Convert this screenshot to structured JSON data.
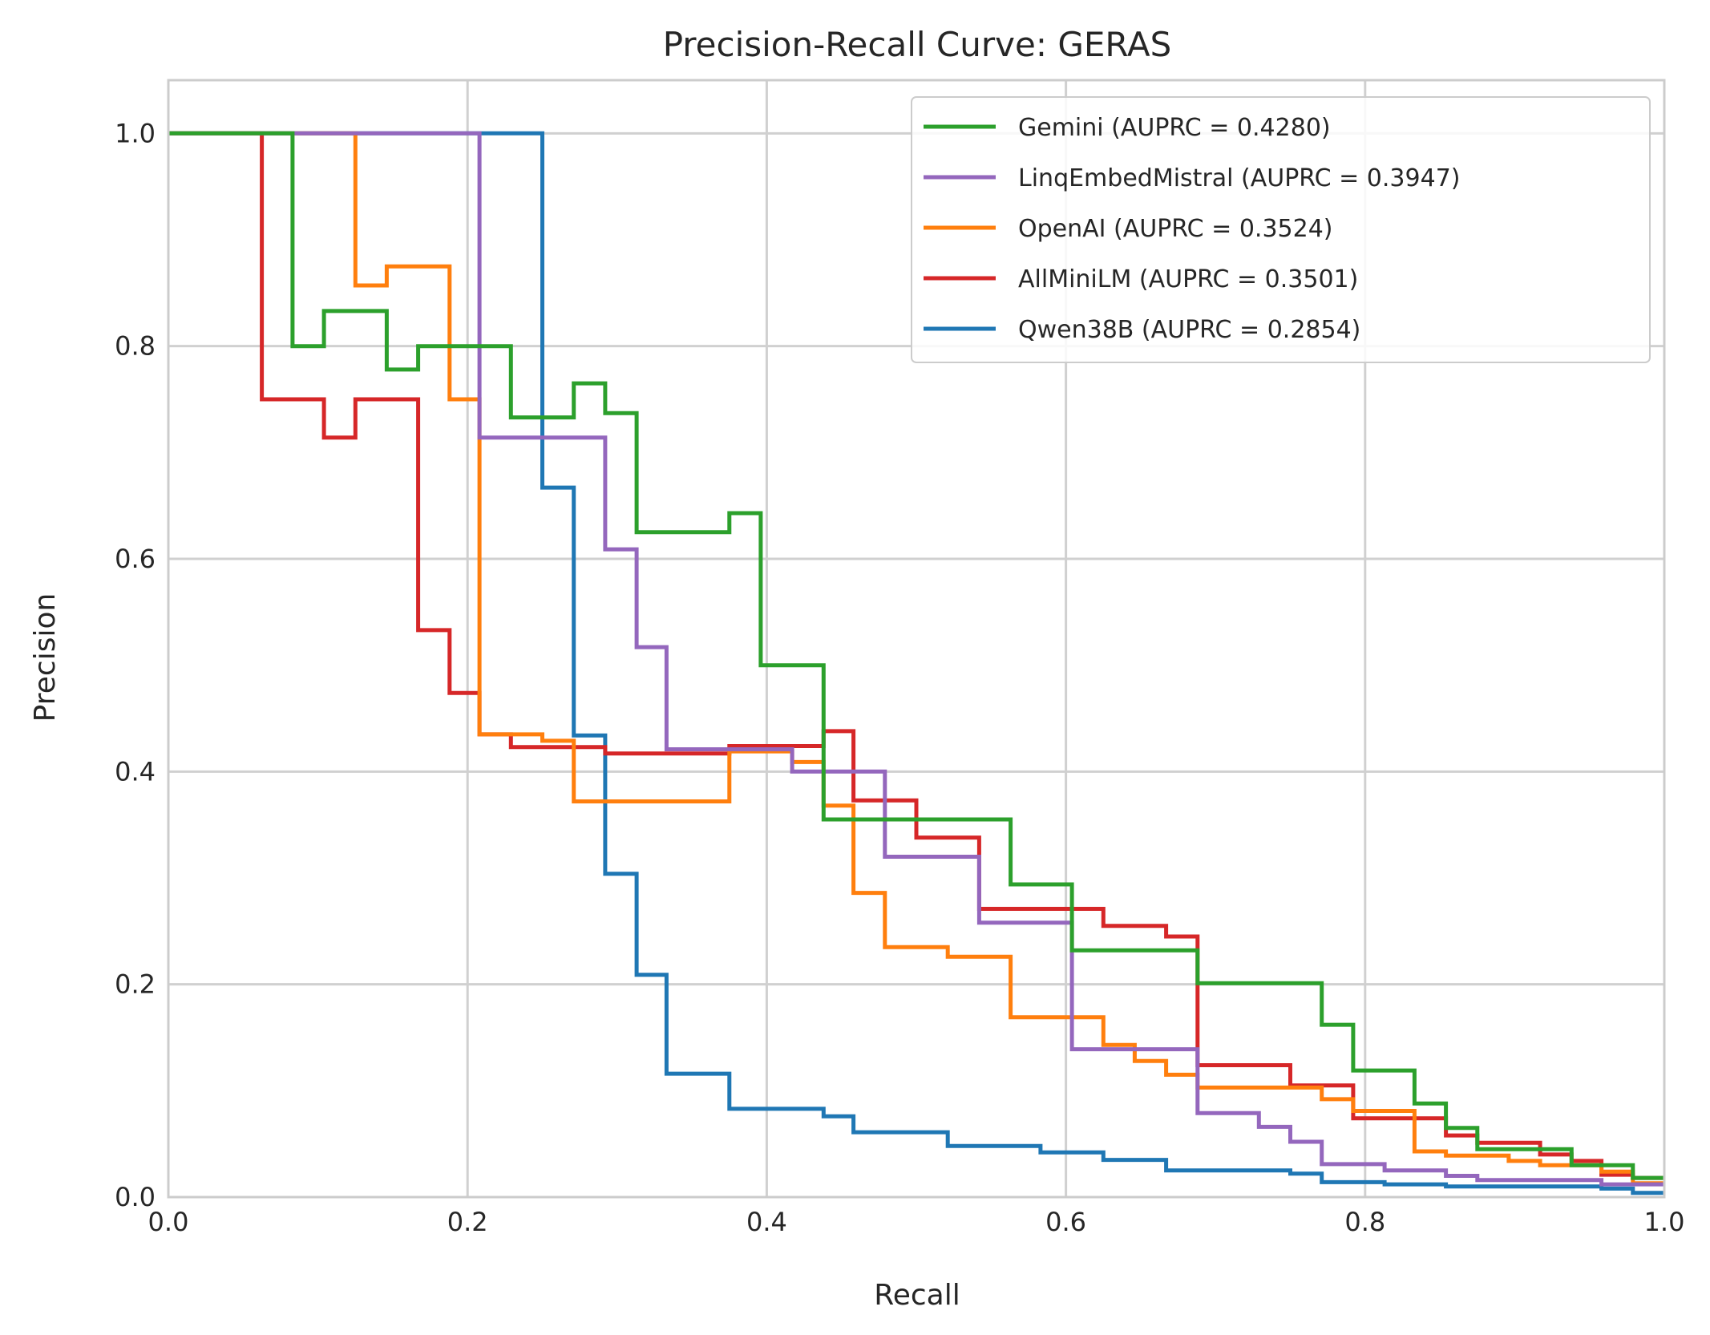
{
  "chart_data": {
    "type": "line",
    "step": "post",
    "title": "Precision-Recall Curve: GERAS",
    "xlabel": "Recall",
    "ylabel": "Precision",
    "xlim": [
      0.0,
      1.0
    ],
    "ylim": [
      0.0,
      1.05
    ],
    "xticks": [
      "0.0",
      "0.2",
      "0.4",
      "0.6",
      "0.8",
      "1.0"
    ],
    "yticks": [
      "0.0",
      "0.2",
      "0.4",
      "0.6",
      "0.8",
      "1.0"
    ],
    "grid": true,
    "legend_position": "top-right",
    "series": [
      {
        "name": "Gemini (AUPRC = 0.4280)",
        "color": "#2ca02c",
        "points": [
          [
            0,
            1.0
          ],
          [
            0.083,
            1.0
          ],
          [
            0.083,
            0.8
          ],
          [
            0.104,
            0.8
          ],
          [
            0.104,
            0.833
          ],
          [
            0.146,
            0.833
          ],
          [
            0.146,
            0.778
          ],
          [
            0.167,
            0.778
          ],
          [
            0.167,
            0.8
          ],
          [
            0.229,
            0.8
          ],
          [
            0.229,
            0.733
          ],
          [
            0.271,
            0.733
          ],
          [
            0.271,
            0.765
          ],
          [
            0.292,
            0.765
          ],
          [
            0.292,
            0.737
          ],
          [
            0.313,
            0.737
          ],
          [
            0.313,
            0.625
          ],
          [
            0.375,
            0.625
          ],
          [
            0.375,
            0.643
          ],
          [
            0.396,
            0.643
          ],
          [
            0.396,
            0.5
          ],
          [
            0.438,
            0.5
          ],
          [
            0.438,
            0.355
          ],
          [
            0.563,
            0.355
          ],
          [
            0.563,
            0.294
          ],
          [
            0.604,
            0.294
          ],
          [
            0.604,
            0.232
          ],
          [
            0.688,
            0.232
          ],
          [
            0.688,
            0.201
          ],
          [
            0.771,
            0.201
          ],
          [
            0.771,
            0.162
          ],
          [
            0.792,
            0.162
          ],
          [
            0.792,
            0.119
          ],
          [
            0.833,
            0.119
          ],
          [
            0.833,
            0.088
          ],
          [
            0.854,
            0.088
          ],
          [
            0.854,
            0.065
          ],
          [
            0.875,
            0.065
          ],
          [
            0.875,
            0.045
          ],
          [
            0.938,
            0.045
          ],
          [
            0.938,
            0.03
          ],
          [
            0.979,
            0.03
          ],
          [
            0.979,
            0.018
          ],
          [
            1.0,
            0.018
          ]
        ]
      },
      {
        "name": "LinqEmbedMistral (AUPRC = 0.3947)",
        "color": "#9467bd",
        "points": [
          [
            0,
            1.0
          ],
          [
            0.208,
            1.0
          ],
          [
            0.208,
            0.714
          ],
          [
            0.292,
            0.714
          ],
          [
            0.292,
            0.609
          ],
          [
            0.313,
            0.609
          ],
          [
            0.313,
            0.517
          ],
          [
            0.333,
            0.517
          ],
          [
            0.333,
            0.421
          ],
          [
            0.417,
            0.421
          ],
          [
            0.417,
            0.4
          ],
          [
            0.479,
            0.4
          ],
          [
            0.479,
            0.32
          ],
          [
            0.542,
            0.32
          ],
          [
            0.542,
            0.258
          ],
          [
            0.604,
            0.258
          ],
          [
            0.604,
            0.139
          ],
          [
            0.688,
            0.139
          ],
          [
            0.688,
            0.079
          ],
          [
            0.729,
            0.079
          ],
          [
            0.729,
            0.066
          ],
          [
            0.75,
            0.066
          ],
          [
            0.75,
            0.052
          ],
          [
            0.771,
            0.052
          ],
          [
            0.771,
            0.031
          ],
          [
            0.813,
            0.031
          ],
          [
            0.813,
            0.025
          ],
          [
            0.854,
            0.025
          ],
          [
            0.854,
            0.02
          ],
          [
            0.875,
            0.02
          ],
          [
            0.875,
            0.016
          ],
          [
            0.958,
            0.016
          ],
          [
            0.958,
            0.012
          ],
          [
            1.0,
            0.012
          ]
        ]
      },
      {
        "name": "OpenAI (AUPRC = 0.3524)",
        "color": "#ff7f0e",
        "points": [
          [
            0,
            1.0
          ],
          [
            0.125,
            1.0
          ],
          [
            0.125,
            0.857
          ],
          [
            0.146,
            0.857
          ],
          [
            0.146,
            0.875
          ],
          [
            0.188,
            0.875
          ],
          [
            0.188,
            0.75
          ],
          [
            0.208,
            0.75
          ],
          [
            0.208,
            0.435
          ],
          [
            0.25,
            0.435
          ],
          [
            0.25,
            0.429
          ],
          [
            0.271,
            0.429
          ],
          [
            0.271,
            0.372
          ],
          [
            0.375,
            0.372
          ],
          [
            0.375,
            0.419
          ],
          [
            0.417,
            0.419
          ],
          [
            0.417,
            0.409
          ],
          [
            0.438,
            0.409
          ],
          [
            0.438,
            0.368
          ],
          [
            0.458,
            0.368
          ],
          [
            0.458,
            0.286
          ],
          [
            0.479,
            0.286
          ],
          [
            0.479,
            0.235
          ],
          [
            0.521,
            0.235
          ],
          [
            0.521,
            0.226
          ],
          [
            0.563,
            0.226
          ],
          [
            0.563,
            0.169
          ],
          [
            0.625,
            0.169
          ],
          [
            0.625,
            0.143
          ],
          [
            0.646,
            0.143
          ],
          [
            0.646,
            0.128
          ],
          [
            0.667,
            0.128
          ],
          [
            0.667,
            0.115
          ],
          [
            0.688,
            0.115
          ],
          [
            0.688,
            0.103
          ],
          [
            0.771,
            0.103
          ],
          [
            0.771,
            0.092
          ],
          [
            0.792,
            0.092
          ],
          [
            0.792,
            0.081
          ],
          [
            0.833,
            0.081
          ],
          [
            0.833,
            0.043
          ],
          [
            0.854,
            0.043
          ],
          [
            0.854,
            0.039
          ],
          [
            0.896,
            0.039
          ],
          [
            0.896,
            0.034
          ],
          [
            0.917,
            0.034
          ],
          [
            0.917,
            0.03
          ],
          [
            0.958,
            0.03
          ],
          [
            0.958,
            0.024
          ],
          [
            0.979,
            0.024
          ],
          [
            0.979,
            0.013
          ],
          [
            1.0,
            0.013
          ]
        ]
      },
      {
        "name": "AllMiniLM (AUPRC = 0.3501)",
        "color": "#d62728",
        "points": [
          [
            0,
            1.0
          ],
          [
            0.0625,
            1.0
          ],
          [
            0.0625,
            0.75
          ],
          [
            0.104,
            0.75
          ],
          [
            0.104,
            0.714
          ],
          [
            0.125,
            0.714
          ],
          [
            0.125,
            0.75
          ],
          [
            0.167,
            0.75
          ],
          [
            0.167,
            0.533
          ],
          [
            0.188,
            0.533
          ],
          [
            0.188,
            0.474
          ],
          [
            0.208,
            0.474
          ],
          [
            0.208,
            0.435
          ],
          [
            0.229,
            0.435
          ],
          [
            0.229,
            0.423
          ],
          [
            0.292,
            0.423
          ],
          [
            0.292,
            0.417
          ],
          [
            0.333,
            0.417
          ],
          [
            0.333,
            0.417
          ],
          [
            0.375,
            0.417
          ],
          [
            0.375,
            0.424
          ],
          [
            0.438,
            0.424
          ],
          [
            0.438,
            0.438
          ],
          [
            0.458,
            0.438
          ],
          [
            0.458,
            0.373
          ],
          [
            0.5,
            0.373
          ],
          [
            0.5,
            0.338
          ],
          [
            0.542,
            0.338
          ],
          [
            0.542,
            0.271
          ],
          [
            0.625,
            0.271
          ],
          [
            0.625,
            0.255
          ],
          [
            0.667,
            0.255
          ],
          [
            0.667,
            0.245
          ],
          [
            0.688,
            0.245
          ],
          [
            0.688,
            0.124
          ],
          [
            0.75,
            0.124
          ],
          [
            0.75,
            0.105
          ],
          [
            0.792,
            0.105
          ],
          [
            0.792,
            0.074
          ],
          [
            0.833,
            0.074
          ],
          [
            0.833,
            0.074
          ],
          [
            0.854,
            0.074
          ],
          [
            0.854,
            0.058
          ],
          [
            0.875,
            0.058
          ],
          [
            0.875,
            0.051
          ],
          [
            0.917,
            0.051
          ],
          [
            0.917,
            0.04
          ],
          [
            0.938,
            0.04
          ],
          [
            0.938,
            0.034
          ],
          [
            0.958,
            0.034
          ],
          [
            0.958,
            0.021
          ],
          [
            0.979,
            0.021
          ],
          [
            0.979,
            0.018
          ],
          [
            1.0,
            0.018
          ]
        ]
      },
      {
        "name": "Qwen38B (AUPRC = 0.2854)",
        "color": "#1f77b4",
        "points": [
          [
            0,
            1.0
          ],
          [
            0.25,
            1.0
          ],
          [
            0.25,
            0.667
          ],
          [
            0.271,
            0.667
          ],
          [
            0.271,
            0.434
          ],
          [
            0.292,
            0.434
          ],
          [
            0.292,
            0.304
          ],
          [
            0.313,
            0.304
          ],
          [
            0.313,
            0.209
          ],
          [
            0.333,
            0.209
          ],
          [
            0.333,
            0.116
          ],
          [
            0.375,
            0.116
          ],
          [
            0.375,
            0.083
          ],
          [
            0.438,
            0.083
          ],
          [
            0.438,
            0.076
          ],
          [
            0.458,
            0.076
          ],
          [
            0.458,
            0.061
          ],
          [
            0.521,
            0.061
          ],
          [
            0.521,
            0.048
          ],
          [
            0.583,
            0.048
          ],
          [
            0.583,
            0.042
          ],
          [
            0.625,
            0.042
          ],
          [
            0.625,
            0.035
          ],
          [
            0.667,
            0.035
          ],
          [
            0.667,
            0.025
          ],
          [
            0.75,
            0.025
          ],
          [
            0.75,
            0.022
          ],
          [
            0.771,
            0.022
          ],
          [
            0.771,
            0.014
          ],
          [
            0.813,
            0.014
          ],
          [
            0.813,
            0.012
          ],
          [
            0.854,
            0.012
          ],
          [
            0.854,
            0.01
          ],
          [
            0.958,
            0.01
          ],
          [
            0.958,
            0.008
          ],
          [
            0.979,
            0.008
          ],
          [
            0.979,
            0.004
          ],
          [
            1.0,
            0.004
          ]
        ]
      }
    ]
  }
}
